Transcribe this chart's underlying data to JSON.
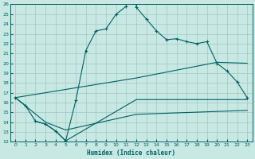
{
  "xlabel": "Humidex (Indice chaleur)",
  "xlim": [
    -0.5,
    23.5
  ],
  "ylim": [
    12,
    26
  ],
  "xticks": [
    0,
    1,
    2,
    3,
    4,
    5,
    6,
    7,
    8,
    9,
    10,
    11,
    12,
    13,
    14,
    15,
    16,
    17,
    18,
    19,
    20,
    21,
    22,
    23
  ],
  "yticks": [
    12,
    13,
    14,
    15,
    16,
    17,
    18,
    19,
    20,
    21,
    22,
    23,
    24,
    25,
    26
  ],
  "bg_color": "#c8e8e4",
  "line_color": "#006060",
  "grid_color": "#a0c8c4",
  "line1": [
    [
      0,
      16.5
    ],
    [
      1,
      15.7
    ],
    [
      2,
      14.1
    ],
    [
      3,
      13.8
    ],
    [
      4,
      13.1
    ],
    [
      5,
      12.1
    ],
    [
      6,
      16.2
    ],
    [
      7,
      21.3
    ],
    [
      8,
      23.3
    ],
    [
      9,
      23.5
    ],
    [
      10,
      25.0
    ],
    [
      11,
      25.8
    ],
    [
      11,
      26.2
    ],
    [
      12,
      26.0
    ],
    [
      12,
      25.7
    ],
    [
      13,
      24.5
    ],
    [
      14,
      23.3
    ],
    [
      15,
      22.4
    ],
    [
      16,
      22.5
    ],
    [
      17,
      22.2
    ],
    [
      18,
      22.0
    ],
    [
      19,
      22.2
    ],
    [
      20,
      20.0
    ],
    [
      21,
      19.2
    ],
    [
      22,
      18.1
    ],
    [
      23,
      16.5
    ]
  ],
  "line2": [
    [
      2,
      14.1
    ],
    [
      3,
      13.8
    ],
    [
      4,
      13.1
    ],
    [
      5,
      12.1
    ],
    [
      5,
      12.1
    ],
    [
      12,
      16.3
    ],
    [
      23,
      16.3
    ]
  ],
  "line3": [
    [
      0,
      16.5
    ],
    [
      12,
      18.5
    ],
    [
      20,
      20.1
    ],
    [
      23,
      20.0
    ]
  ],
  "line4": [
    [
      0,
      16.5
    ],
    [
      3,
      14.0
    ],
    [
      5,
      13.2
    ],
    [
      12,
      14.8
    ],
    [
      23,
      15.2
    ]
  ],
  "marker_style": "+"
}
